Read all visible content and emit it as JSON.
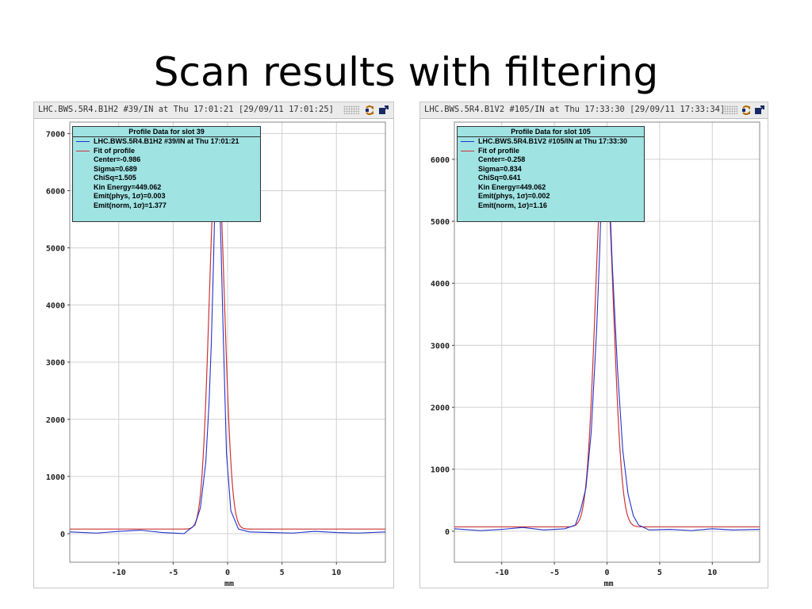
{
  "slide": {
    "title": "Scan results with filtering"
  },
  "panels": [
    {
      "window_title": "LHC.BWS.5R4.B1H2 #39/IN at Thu 17:01:21  [29/09/11 17:01:25]",
      "legend": {
        "header": "Profile Data for slot 39",
        "series_label": "LHC.BWS.5R4.B1H2 #39/IN at Thu 17:01:21",
        "fit_label": "Fit of profile",
        "stats": [
          "Center=-0.986",
          "Sigma=0.689",
          "ChiSq=1.505",
          "Kin Energy=449.062",
          "Emit(phys, 1σ)=0.003",
          "Emit(norm, 1σ)=1.377"
        ]
      }
    },
    {
      "window_title": "LHC.BWS.5R4.B1V2 #105/IN at Thu 17:33:30  [29/09/11 17:33:34]",
      "legend": {
        "header": "Profile Data for slot 105",
        "series_label": "LHC.BWS.5R4.B1V2 #105/IN at Thu 17:33:30",
        "fit_label": "Fit of profile",
        "stats": [
          "Center=-0.258",
          "Sigma=0.834",
          "ChiSq=0.641",
          "Kin Energy=449.062",
          "Emit(phys, 1σ)=0.002",
          "Emit(norm, 1σ)=1.16"
        ]
      }
    }
  ],
  "colors": {
    "data": "#2233cc",
    "fit": "#cc3333",
    "legend_bg": "#9fe3e3",
    "grid": "#d0d0d0"
  },
  "icons": [
    "refresh-icon",
    "export-icon"
  ],
  "chart_data": [
    {
      "type": "line",
      "xlabel": "mm",
      "ylabel": "",
      "xlim": [
        -14.5,
        14.5
      ],
      "ylim": [
        -500,
        7200
      ],
      "x_ticks": [
        -10,
        -5,
        0,
        5,
        10
      ],
      "y_ticks": [
        0,
        1000,
        2000,
        3000,
        4000,
        5000,
        6000,
        7000
      ],
      "grid": true,
      "legend_position": "top-left",
      "series": [
        {
          "name": "LHC.BWS.5R4.B1H2 #39/IN at Thu 17:01:21",
          "x": [
            -14.5,
            -12,
            -10,
            -8,
            -6,
            -4,
            -3,
            -2.5,
            -2,
            -1.7,
            -1.5,
            -1.3,
            -1.1,
            -0.986,
            -0.85,
            -0.6,
            -0.4,
            -0.1,
            0.3,
            1,
            2,
            4,
            6,
            8,
            10,
            12,
            14.5
          ],
          "values": [
            30,
            10,
            40,
            60,
            20,
            0,
            150,
            450,
            1250,
            2300,
            3300,
            4700,
            6300,
            6950,
            6650,
            5000,
            3500,
            1400,
            400,
            80,
            30,
            20,
            10,
            40,
            20,
            10,
            30
          ]
        },
        {
          "name": "Fit of profile",
          "model": "gaussian",
          "center": -0.986,
          "sigma": 0.689,
          "amplitude": 6700,
          "offset": 80
        }
      ]
    },
    {
      "type": "line",
      "xlabel": "mm",
      "ylabel": "",
      "xlim": [
        -14.5,
        14.5
      ],
      "ylim": [
        -500,
        6600
      ],
      "x_ticks": [
        -10,
        -5,
        0,
        5,
        10
      ],
      "y_ticks": [
        0,
        1000,
        2000,
        3000,
        4000,
        5000,
        6000
      ],
      "grid": true,
      "legend_position": "top-left",
      "series": [
        {
          "name": "LHC.BWS.5R4.B1V2 #105/IN at Thu 17:33:30",
          "x": [
            -14.5,
            -12,
            -10,
            -8,
            -6,
            -4,
            -3,
            -2.5,
            -2,
            -1.5,
            -1,
            -0.7,
            -0.5,
            -0.258,
            -0.1,
            0.2,
            0.5,
            1,
            1.5,
            2,
            2.5,
            3,
            4,
            6,
            8,
            10,
            12,
            14.5
          ],
          "values": [
            40,
            10,
            30,
            60,
            20,
            40,
            100,
            350,
            700,
            1600,
            3200,
            4500,
            5600,
            6450,
            6300,
            5600,
            4300,
            2600,
            1300,
            600,
            250,
            100,
            20,
            30,
            10,
            40,
            20,
            30
          ]
        },
        {
          "name": "Fit of profile",
          "model": "gaussian",
          "center": -0.258,
          "sigma": 0.834,
          "amplitude": 6150,
          "offset": 70
        }
      ]
    }
  ]
}
